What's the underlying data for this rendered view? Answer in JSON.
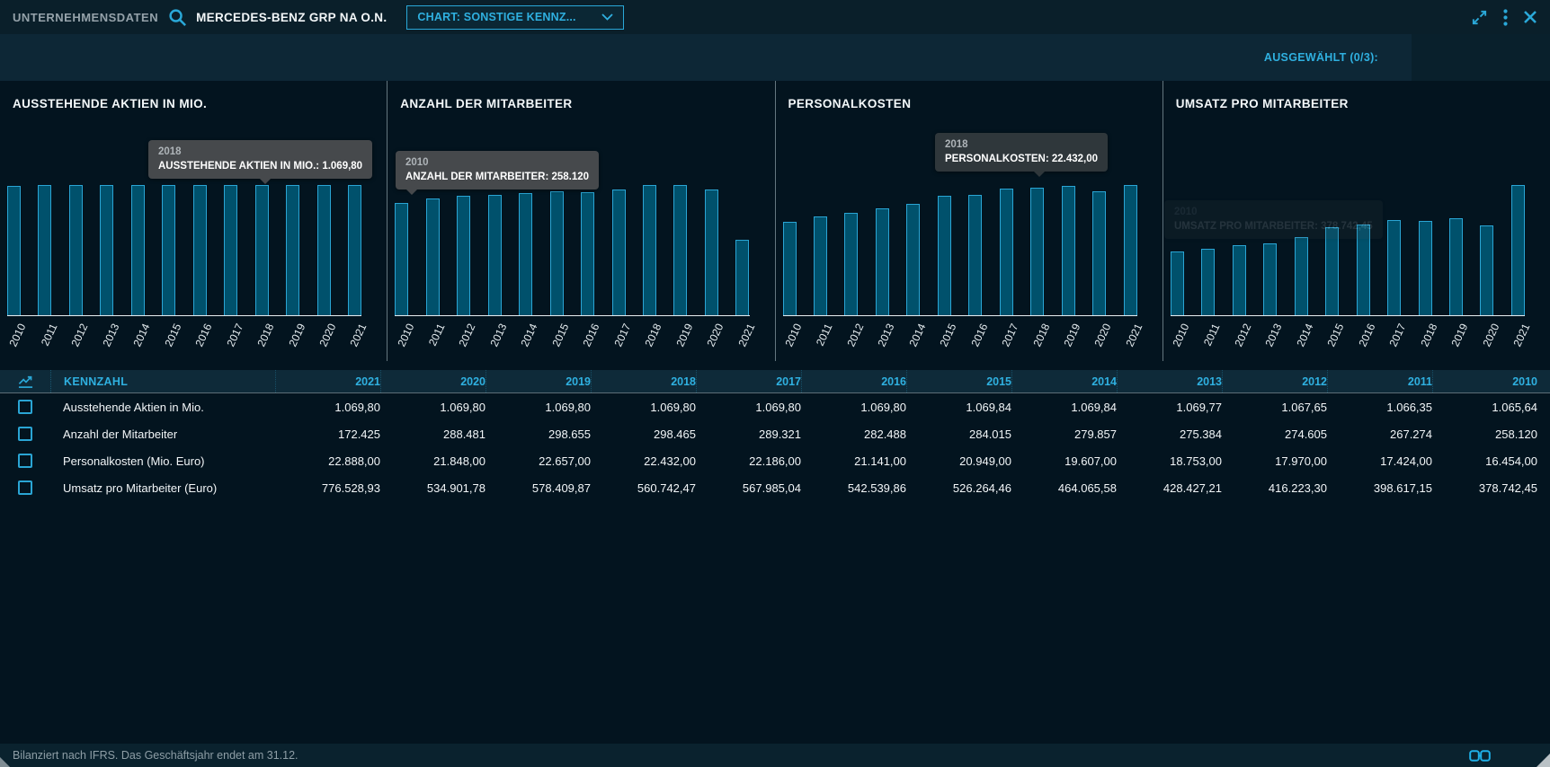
{
  "header": {
    "app_label": "UNTERNEHMENSDATEN",
    "instrument": "MERCEDES-BENZ GRP NA O.N.",
    "chart_select": "CHART: SONSTIGE KENNZ..."
  },
  "selection_bar": {
    "label": "AUSGEWÄHLT (0/3):"
  },
  "chart_data": [
    {
      "type": "bar",
      "title": "AUSSTEHENDE AKTIEN IN MIO.",
      "categories": [
        "2010",
        "2011",
        "2012",
        "2013",
        "2014",
        "2015",
        "2016",
        "2017",
        "2018",
        "2019",
        "2020",
        "2021"
      ],
      "values": [
        1065.64,
        1066.35,
        1067.65,
        1069.77,
        1069.84,
        1069.84,
        1069.8,
        1069.8,
        1069.8,
        1069.8,
        1069.8,
        1069.8
      ],
      "tooltip": {
        "year": "2018",
        "label": "AUSSTEHENDE AKTIEN IN MIO.:",
        "value": "1.069,80"
      }
    },
    {
      "type": "bar",
      "title": "ANZAHL DER MITARBEITER",
      "categories": [
        "2010",
        "2011",
        "2012",
        "2013",
        "2014",
        "2015",
        "2016",
        "2017",
        "2018",
        "2019",
        "2020",
        "2021"
      ],
      "values": [
        258120,
        267274,
        274605,
        275384,
        279857,
        284015,
        282488,
        289321,
        298465,
        298655,
        288481,
        172425
      ],
      "tooltip": {
        "year": "2010",
        "label": "ANZAHL DER MITARBEITER:",
        "value": "258.120"
      }
    },
    {
      "type": "bar",
      "title": "PERSONALKOSTEN",
      "categories": [
        "2010",
        "2011",
        "2012",
        "2013",
        "2014",
        "2015",
        "2016",
        "2017",
        "2018",
        "2019",
        "2020",
        "2021"
      ],
      "values": [
        16454,
        17424,
        17970,
        18753,
        19607,
        20949,
        21141,
        22186,
        22432,
        22657,
        21848,
        22888
      ],
      "tooltip": {
        "year": "2018",
        "label": "PERSONALKOSTEN:",
        "value": "22.432,00"
      }
    },
    {
      "type": "bar",
      "title": "UMSATZ PRO MITARBEITER",
      "categories": [
        "2010",
        "2011",
        "2012",
        "2013",
        "2014",
        "2015",
        "2016",
        "2017",
        "2018",
        "2019",
        "2020",
        "2021"
      ],
      "values": [
        378742.45,
        398617.15,
        416223.3,
        428427.21,
        464065.58,
        526264.46,
        542539.86,
        567985.04,
        560742.47,
        578409.87,
        534901.78,
        776528.93
      ],
      "tooltip": {
        "year": "2010",
        "label": "UMSATZ PRO MITARBEITER:",
        "value": "378.742,45"
      }
    }
  ],
  "table": {
    "metric_header": "KENNZAHL",
    "columns": [
      "2021",
      "2020",
      "2019",
      "2018",
      "2017",
      "2016",
      "2015",
      "2014",
      "2013",
      "2012",
      "2011",
      "2010"
    ],
    "rows": [
      {
        "label": "Ausstehende Aktien in Mio.",
        "values": [
          "1.069,80",
          "1.069,80",
          "1.069,80",
          "1.069,80",
          "1.069,80",
          "1.069,80",
          "1.069,84",
          "1.069,84",
          "1.069,77",
          "1.067,65",
          "1.066,35",
          "1.065,64"
        ]
      },
      {
        "label": "Anzahl der Mitarbeiter",
        "values": [
          "172.425",
          "288.481",
          "298.655",
          "298.465",
          "289.321",
          "282.488",
          "284.015",
          "279.857",
          "275.384",
          "274.605",
          "267.274",
          "258.120"
        ]
      },
      {
        "label": "Personalkosten (Mio. Euro)",
        "values": [
          "22.888,00",
          "21.848,00",
          "22.657,00",
          "22.432,00",
          "22.186,00",
          "21.141,00",
          "20.949,00",
          "19.607,00",
          "18.753,00",
          "17.970,00",
          "17.424,00",
          "16.454,00"
        ]
      },
      {
        "label": "Umsatz pro Mitarbeiter (Euro)",
        "values": [
          "776.528,93",
          "534.901,78",
          "578.409,87",
          "560.742,47",
          "567.985,04",
          "542.539,86",
          "526.264,46",
          "464.065,58",
          "428.427,21",
          "416.223,30",
          "398.617,15",
          "378.742,45"
        ]
      }
    ]
  },
  "footer": {
    "note": "Bilanziert nach IFRS. Das Geschäftsjahr endet am 31.12."
  },
  "colors": {
    "accent": "#2aa8d8",
    "bar_fill": "#00516c",
    "bar_border": "#2aa5d4",
    "tooltip_bg": "#46494c",
    "background": "#03141f"
  }
}
